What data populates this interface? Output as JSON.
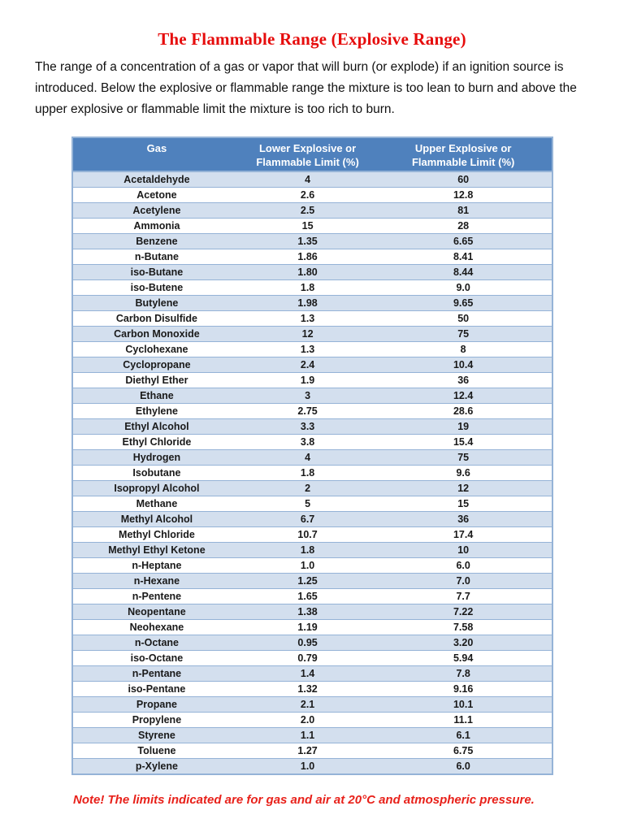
{
  "page": {
    "title": "The Flammable Range (Explosive Range)",
    "intro": "The range of a concentration of a gas or vapor that will burn (or explode) if an ignition source is introduced. Below the explosive or flammable range the mixture is too lean to burn and above the upper explosive or flammable limit the mixture is too rich to burn.",
    "note": "Note! The limits indicated are for gas and air at 20°C and atmospheric pressure."
  },
  "table": {
    "headers": [
      {
        "line1": "Gas",
        "line2": ""
      },
      {
        "line1": "Lower Explosive or",
        "line2": "Flammable Limit (%)"
      },
      {
        "line1": "Upper Explosive or",
        "line2": "Flammable Limit (%)"
      }
    ],
    "rows": [
      {
        "gas": "Acetaldehyde",
        "lower": "4",
        "upper": "60"
      },
      {
        "gas": "Acetone",
        "lower": "2.6",
        "upper": "12.8"
      },
      {
        "gas": "Acetylene",
        "lower": "2.5",
        "upper": "81"
      },
      {
        "gas": "Ammonia",
        "lower": "15",
        "upper": "28"
      },
      {
        "gas": "Benzene",
        "lower": "1.35",
        "upper": "6.65"
      },
      {
        "gas": "n-Butane",
        "lower": "1.86",
        "upper": "8.41"
      },
      {
        "gas": "iso-Butane",
        "lower": "1.80",
        "upper": "8.44"
      },
      {
        "gas": "iso-Butene",
        "lower": "1.8",
        "upper": "9.0"
      },
      {
        "gas": "Butylene",
        "lower": "1.98",
        "upper": "9.65"
      },
      {
        "gas": "Carbon Disulfide",
        "lower": "1.3",
        "upper": "50"
      },
      {
        "gas": "Carbon Monoxide",
        "lower": "12",
        "upper": "75"
      },
      {
        "gas": "Cyclohexane",
        "lower": "1.3",
        "upper": "8"
      },
      {
        "gas": "Cyclopropane",
        "lower": "2.4",
        "upper": "10.4"
      },
      {
        "gas": "Diethyl Ether",
        "lower": "1.9",
        "upper": "36"
      },
      {
        "gas": "Ethane",
        "lower": "3",
        "upper": "12.4"
      },
      {
        "gas": "Ethylene",
        "lower": "2.75",
        "upper": "28.6"
      },
      {
        "gas": "Ethyl Alcohol",
        "lower": "3.3",
        "upper": "19"
      },
      {
        "gas": "Ethyl Chloride",
        "lower": "3.8",
        "upper": "15.4"
      },
      {
        "gas": "Hydrogen",
        "lower": "4",
        "upper": "75"
      },
      {
        "gas": "Isobutane",
        "lower": "1.8",
        "upper": "9.6"
      },
      {
        "gas": "Isopropyl Alcohol",
        "lower": "2",
        "upper": "12"
      },
      {
        "gas": "Methane",
        "lower": "5",
        "upper": "15"
      },
      {
        "gas": "Methyl Alcohol",
        "lower": "6.7",
        "upper": "36"
      },
      {
        "gas": "Methyl Chloride",
        "lower": "10.7",
        "upper": "17.4"
      },
      {
        "gas": "Methyl Ethyl Ketone",
        "lower": "1.8",
        "upper": "10"
      },
      {
        "gas": "n-Heptane",
        "lower": "1.0",
        "upper": "6.0"
      },
      {
        "gas": "n-Hexane",
        "lower": "1.25",
        "upper": "7.0"
      },
      {
        "gas": "n-Pentene",
        "lower": "1.65",
        "upper": "7.7"
      },
      {
        "gas": "Neopentane",
        "lower": "1.38",
        "upper": "7.22"
      },
      {
        "gas": "Neohexane",
        "lower": "1.19",
        "upper": "7.58"
      },
      {
        "gas": "n-Octane",
        "lower": "0.95",
        "upper": "3.20"
      },
      {
        "gas": "iso-Octane",
        "lower": "0.79",
        "upper": "5.94"
      },
      {
        "gas": "n-Pentane",
        "lower": "1.4",
        "upper": "7.8"
      },
      {
        "gas": "iso-Pentane",
        "lower": "1.32",
        "upper": "9.16"
      },
      {
        "gas": "Propane",
        "lower": "2.1",
        "upper": "10.1"
      },
      {
        "gas": "Propylene",
        "lower": "2.0",
        "upper": "11.1"
      },
      {
        "gas": "Styrene",
        "lower": "1.1",
        "upper": "6.1"
      },
      {
        "gas": "Toluene",
        "lower": "1.27",
        "upper": "6.75"
      },
      {
        "gas": "p-Xylene",
        "lower": "1.0",
        "upper": "6.0"
      }
    ]
  },
  "colors": {
    "header_bg": "#4f81bd",
    "band_bg": "#d3dfee",
    "border_color": "#95b3d7",
    "title_red": "#e60c0c",
    "note_red": "#e8211a",
    "text_color": "#1a1a1a"
  }
}
